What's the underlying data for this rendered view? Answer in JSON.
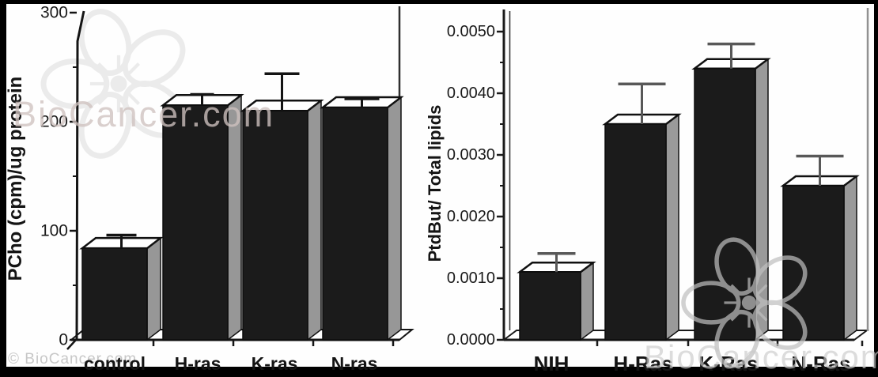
{
  "figure": {
    "background": "#ffffff",
    "border_color": "#000000"
  },
  "watermarks": {
    "copyright": "© BioCancer.com",
    "brand_left": "BioCancer.com",
    "brand_right": "BioCancer.com",
    "flower_icon": "biocancer-flower-logo"
  },
  "chart_data": [
    {
      "id": "pcho-bar-chart",
      "type": "bar",
      "style": "3d-bars-with-error-bars",
      "title": "",
      "xlabel": "",
      "ylabel": "PCho (cpm)/ug protein",
      "categories": [
        "control",
        "H-ras",
        "K-ras",
        "N-ras"
      ],
      "values": [
        84,
        215,
        210,
        213
      ],
      "errors_upper": [
        12,
        10,
        34,
        8
      ],
      "ylim": [
        0,
        300
      ],
      "yticks": [
        0,
        100,
        200,
        300
      ],
      "ytick_labels": [
        "0",
        "100",
        "200",
        "300"
      ],
      "yticks_minor": [
        50,
        150,
        250
      ],
      "grid": false,
      "legend": null,
      "bar_front_color": "#1b1b1b",
      "bar_side_color": "#979797",
      "bar_top_color": "#ffffff",
      "axis_color": "#141414",
      "error_color": "#141414"
    },
    {
      "id": "ptdbut-bar-chart",
      "type": "bar",
      "style": "3d-bars-with-error-bars",
      "title": "",
      "xlabel": "",
      "ylabel": "PtdBut/ Total lipids",
      "categories": [
        "NIH",
        "H-Ras",
        "K-Ras",
        "N-Ras"
      ],
      "values": [
        0.0011,
        0.0035,
        0.0044,
        0.0025
      ],
      "errors_upper": [
        0.0003,
        0.00065,
        0.0004,
        0.00048
      ],
      "ylim": [
        0,
        0.005
      ],
      "yticks": [
        0,
        0.001,
        0.002,
        0.003,
        0.004,
        0.005
      ],
      "ytick_labels": [
        "0.0000",
        "0.0010",
        "0.0020",
        "0.0030",
        "0.0040",
        "0.0050"
      ],
      "yticks_minor": [
        0.0005,
        0.0015,
        0.0025,
        0.0035,
        0.0045
      ],
      "grid": false,
      "legend": null,
      "bar_front_color": "#1b1b1b",
      "bar_side_color": "#9a9a9a",
      "bar_top_color": "#ffffff",
      "axis_color": "#1a1a1a",
      "error_color": "#585858"
    }
  ]
}
